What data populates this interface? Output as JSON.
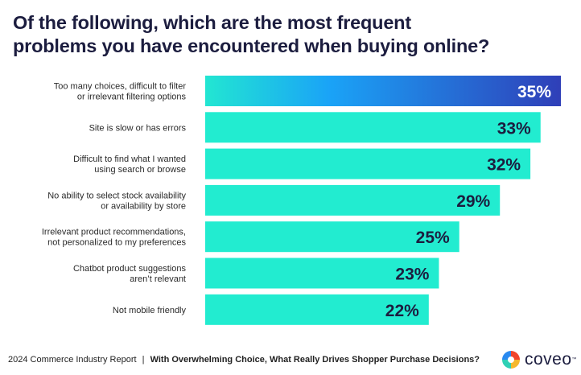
{
  "chart_data": {
    "type": "bar",
    "orientation": "horizontal",
    "title": "Of the following, which are the most frequent problems you have encountered when buying online?",
    "title_lines": [
      "Of the following, which are the most frequent",
      "problems you have encountered when buying online?"
    ],
    "categories": [
      [
        "Too many choices, difficult to filter",
        "or irrelevant filtering options"
      ],
      [
        "Site is slow or has errors"
      ],
      [
        "Difficult to find what I wanted",
        "using search or browse"
      ],
      [
        "No ability to select stock availability",
        "or availability by store"
      ],
      [
        "Irrelevant product recommendations,",
        "not personalized to my preferences"
      ],
      [
        "Chatbot product suggestions",
        "aren’t relevant"
      ],
      [
        "Not mobile friendly"
      ]
    ],
    "values": [
      35,
      33,
      32,
      29,
      25,
      23,
      22
    ],
    "data_labels": [
      "35%",
      "33%",
      "32%",
      "29%",
      "25%",
      "23%",
      "22%"
    ],
    "unit": "%",
    "xlim": [
      0,
      35
    ],
    "grid": false,
    "legend": "none",
    "colors": {
      "bar": "#22ecd0",
      "highlight_gradient": [
        "#22e6d2",
        "#1aa3f7",
        "#2f3fb8"
      ],
      "label_dark": "#1c1d3f",
      "label_light": "#ffffff"
    }
  },
  "footer": {
    "report": "2024 Commerce Industry Report",
    "separator": "|",
    "subtitle": "With Overwhelming Choice, What Really Drives Shopper Purchase Decisions?"
  },
  "logo": {
    "text": "coveo",
    "tm": "™"
  }
}
